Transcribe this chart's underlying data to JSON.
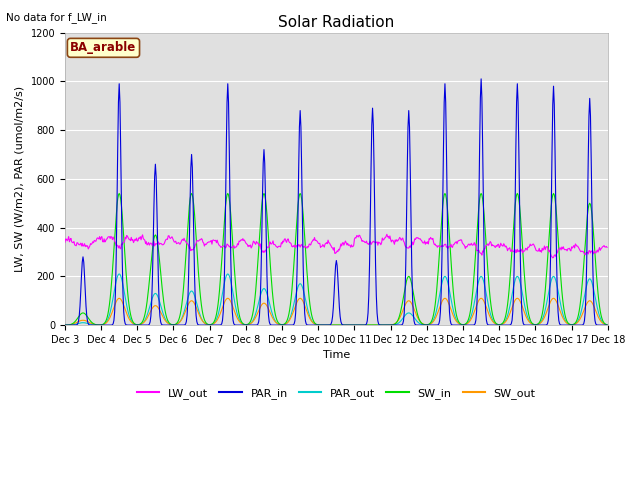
{
  "title": "Solar Radiation",
  "note": "No data for f_LW_in",
  "annotation": "BA_arable",
  "ylabel": "LW, SW (W/m2), PAR (umol/m2/s)",
  "xlabel": "Time",
  "ylim": [
    0,
    1200
  ],
  "yticks": [
    0,
    200,
    400,
    600,
    800,
    1000,
    1200
  ],
  "xtick_labels": [
    "Dec 3",
    "Dec 4",
    "Dec 5",
    "Dec 6",
    "Dec 7",
    "Dec 8",
    "Dec 9",
    "Dec 10",
    "Dec 11",
    "Dec 12",
    "Dec 13",
    "Dec 14",
    "Dec 15",
    "Dec 16",
    "Dec 17",
    "Dec 18"
  ],
  "colors": {
    "LW_out": "#ff00ff",
    "PAR_in": "#0000dd",
    "PAR_out": "#00cccc",
    "SW_in": "#00dd00",
    "SW_out": "#ff9900"
  },
  "n_days": 15,
  "day_peaks_PAR_in": [
    280,
    990,
    660,
    700,
    990,
    720,
    880,
    265,
    890,
    880,
    990,
    1010,
    990,
    980,
    930
  ],
  "day_peaks_SW_in": [
    50,
    540,
    370,
    540,
    540,
    540,
    540,
    0,
    0,
    200,
    540,
    540,
    540,
    540,
    500
  ],
  "day_peaks_SW_out": [
    20,
    110,
    80,
    100,
    110,
    90,
    110,
    0,
    0,
    100,
    110,
    110,
    110,
    110,
    100
  ],
  "day_peaks_PAR_out": [
    10,
    210,
    130,
    140,
    210,
    150,
    170,
    0,
    0,
    50,
    200,
    200,
    200,
    200,
    190
  ],
  "lw_out_base": 325,
  "title_fontsize": 11,
  "label_fontsize": 8,
  "tick_fontsize": 7,
  "legend_fontsize": 8,
  "figwidth": 6.4,
  "figheight": 4.8,
  "dpi": 100
}
